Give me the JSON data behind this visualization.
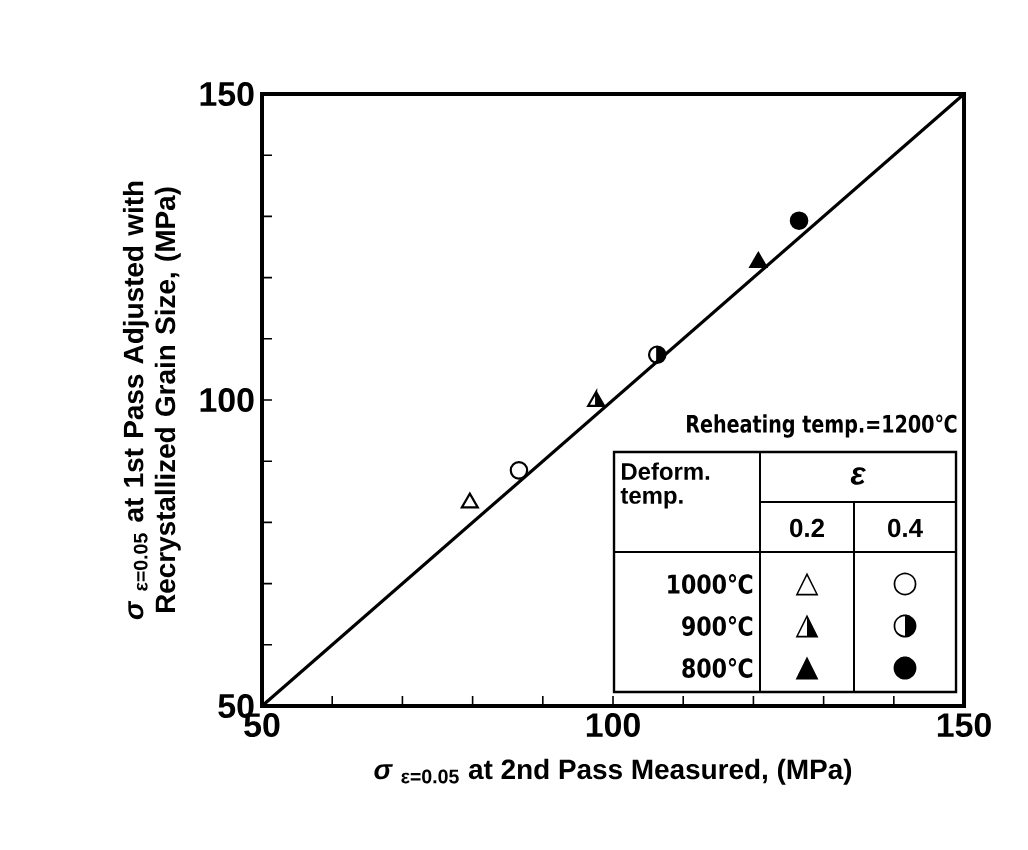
{
  "chart_data": {
    "type": "scatter",
    "xlabel": "*σ* $_{ε=0.05}$ at 2nd Pass Measured, (MPa)",
    "ylabel": "*σ* $_{ε=0.05}$ at 1st Pass Adjusted with Recrystallized Grain Size, (MPa)",
    "xlim": [
      50,
      150
    ],
    "ylim": [
      50,
      150
    ],
    "xticks": [
      50,
      {
        "value": 60,
        "label": null
      },
      {
        "value": 70,
        "label": null
      },
      {
        "value": 80,
        "label": null
      },
      {
        "value": 90,
        "label": null
      },
      100,
      {
        "value": 110,
        "label": null
      },
      {
        "value": 120,
        "label": null
      },
      {
        "value": 130,
        "label": null
      },
      {
        "value": 140,
        "label": null
      },
      150
    ],
    "yticks": [
      50,
      {
        "value": 60,
        "label": null
      },
      {
        "value": 70,
        "label": null
      },
      {
        "value": 80,
        "label": null
      },
      {
        "value": 90,
        "label": null
      },
      100,
      {
        "value": 110,
        "label": null
      },
      {
        "value": 120,
        "label": null
      },
      {
        "value": 130,
        "label": null
      },
      {
        "value": 140,
        "label": null
      },
      150
    ],
    "legend_title": "ε",
    "annotations": [
      "Reheating temp.=1200℃",
      "Deform. temp.",
      "0.2",
      "0.4",
      "1000℃",
      "900℃",
      "800℃",
      "△",
      "○",
      "◮",
      "◑",
      "▲",
      "●"
    ],
    "series": [
      {
        "type": "line",
        "color": "#000000",
        "x": [
          50,
          150
        ],
        "values": [
          50,
          150
        ],
        "marker": "none",
        "line_style": "solid"
      },
      {
        "color": "#000000",
        "marker": "triangle",
        "x": [
          79.6,
          97.6,
          120.7
        ],
        "values": [
          83.2,
          99.8,
          122.5
        ]
      },
      {
        "color": "#000000",
        "marker": "circle",
        "x": [
          86.6,
          106.3,
          126.5
        ],
        "values": [
          88.5,
          107.4,
          129.3
        ]
      }
    ]
  }
}
